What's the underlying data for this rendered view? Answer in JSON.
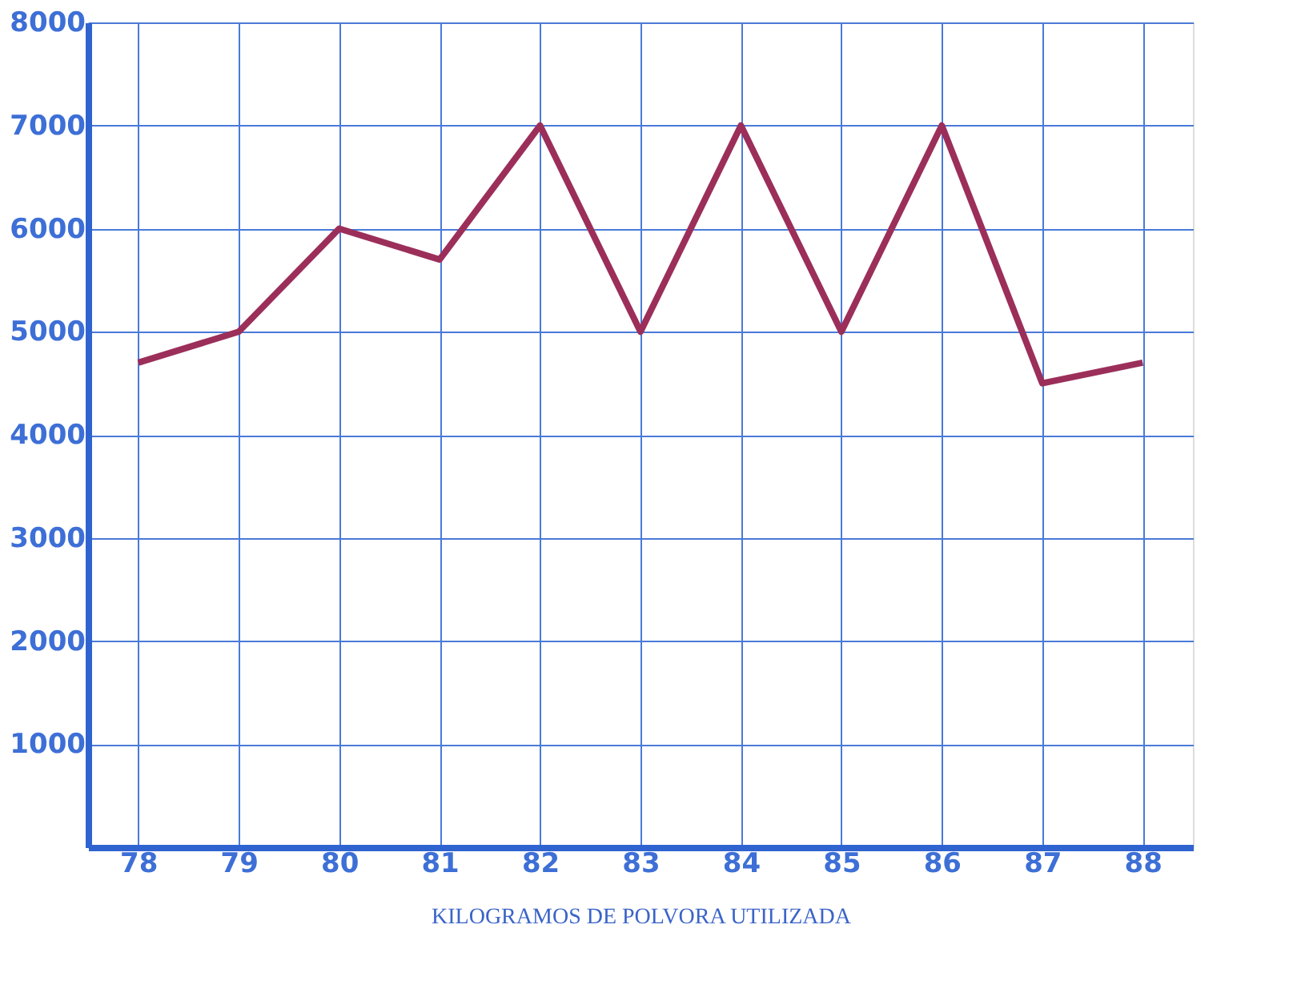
{
  "chart_data": {
    "type": "line",
    "xlabel": "KILOGRAMOS DE POLVORA UTILIZADA",
    "categories": [
      "78",
      "79",
      "80",
      "81",
      "82",
      "83",
      "84",
      "85",
      "86",
      "87",
      "88"
    ],
    "series": [
      {
        "color": "#9b2f5a",
        "values": [
          4700,
          5000,
          6000,
          5700,
          7000,
          5000,
          7000,
          5000,
          7000,
          4500,
          4700
        ]
      }
    ],
    "ylim": [
      0,
      8000
    ],
    "yticks": [
      1000,
      2000,
      3000,
      4000,
      5000,
      6000,
      7000,
      8000
    ],
    "grid": true,
    "marker": "none",
    "line_style": "solid"
  }
}
